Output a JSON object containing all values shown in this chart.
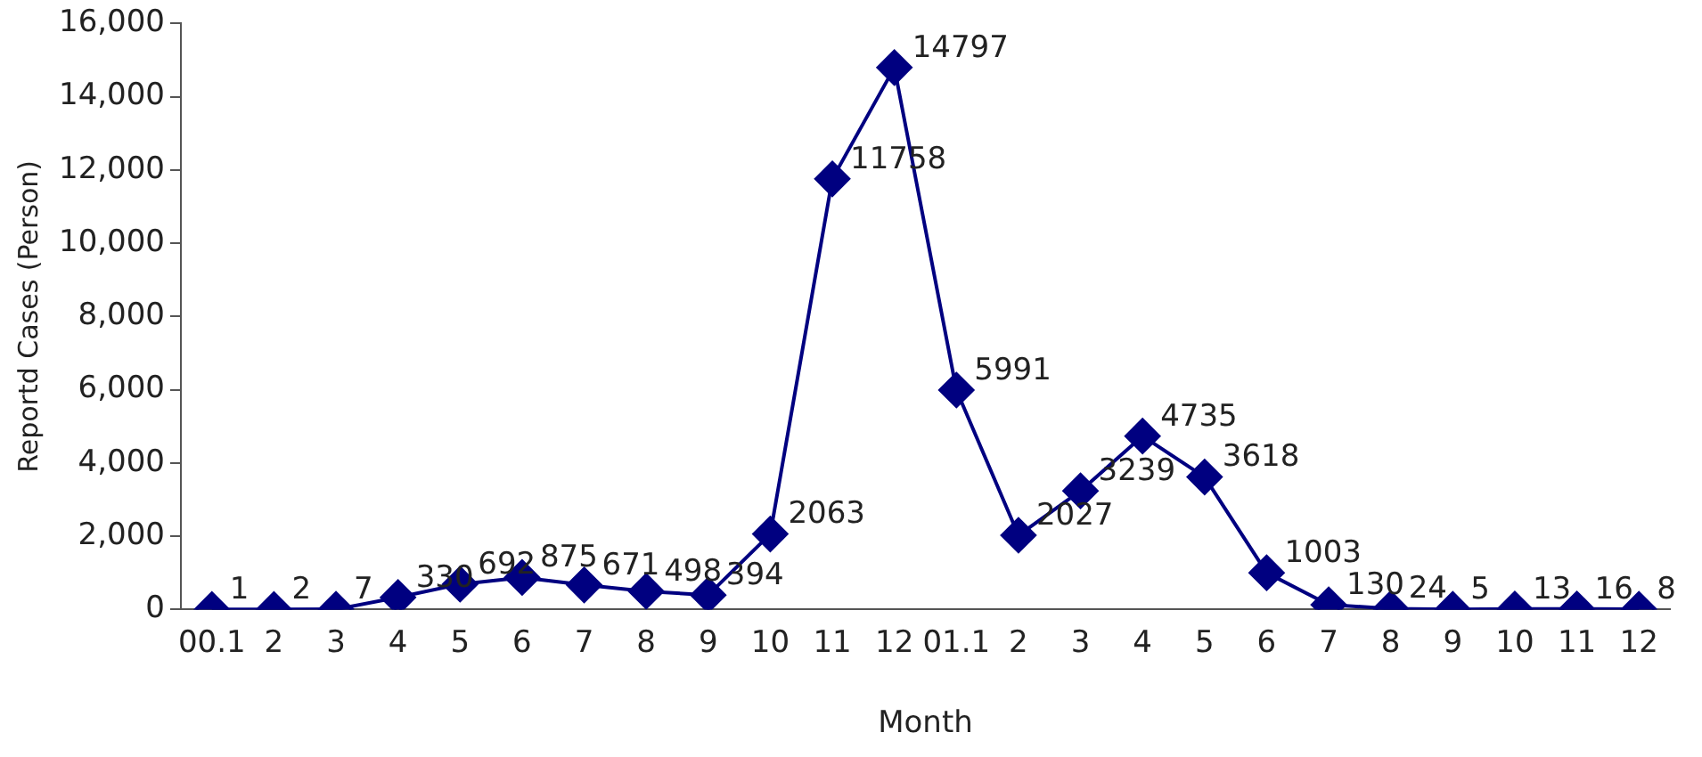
{
  "chart_data": {
    "type": "line",
    "xlabel": "Month",
    "ylabel": "Reportd Cases (Person)",
    "categories": [
      "00.1",
      "2",
      "3",
      "4",
      "5",
      "6",
      "7",
      "8",
      "9",
      "10",
      "11",
      "12",
      "01.1",
      "2",
      "3",
      "4",
      "5",
      "6",
      "7",
      "8",
      "9",
      "10",
      "11",
      "12"
    ],
    "series": [
      {
        "color": "#000080",
        "values": [
          1,
          2,
          7,
          330,
          692,
          875,
          671,
          498,
          394,
          2063,
          11758,
          14797,
          5991,
          2027,
          3239,
          4735,
          3618,
          1003,
          130,
          24,
          5,
          13,
          16,
          8
        ]
      }
    ],
    "ylim": [
      0,
      16000
    ],
    "yticks": [
      0,
      {
        "value": 2000,
        "label": "2,000"
      },
      {
        "value": 4000,
        "label": "4,000"
      },
      {
        "value": 6000,
        "label": "6,000"
      },
      {
        "value": 8000,
        "label": "8,000"
      },
      {
        "value": 10000,
        "label": "10,000"
      },
      {
        "value": 12000,
        "label": "12,000"
      },
      {
        "value": 14000,
        "label": "14,000"
      },
      {
        "value": 16000,
        "label": "16,000"
      }
    ],
    "marker": "diamond",
    "line_style": "solid",
    "data_labels": true,
    "grid": false,
    "legend": false
  }
}
